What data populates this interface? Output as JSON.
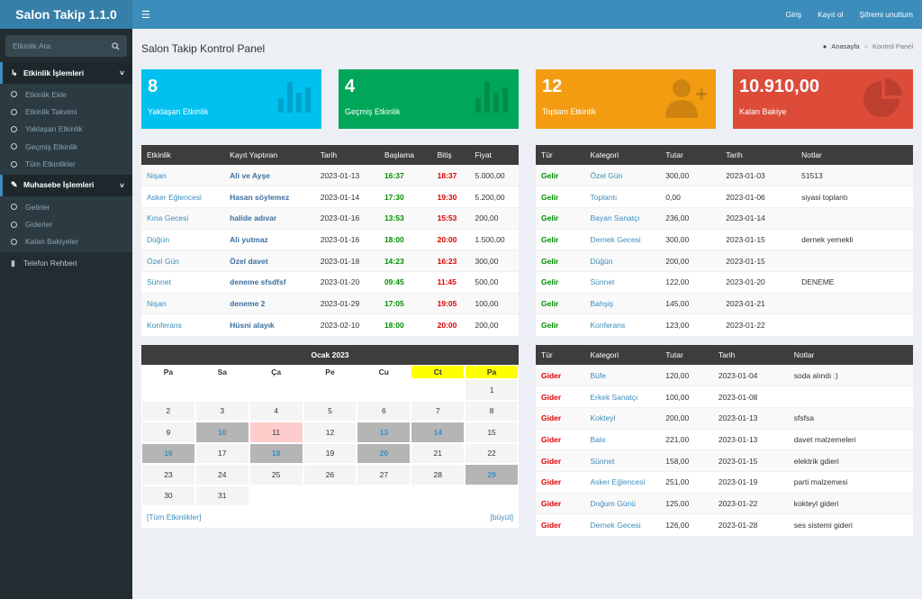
{
  "app": {
    "title": "Salon Takip 1.1.0"
  },
  "sidebar": {
    "search_placeholder": "Etkinlik Ara",
    "groups": [
      {
        "label": "Etkinlik İşlemleri",
        "items": [
          "Etkinlik Ekle",
          "Etkinlik Takvimi",
          "Yaklaşan Etkinlik",
          "Geçmiş Etkinlik",
          "Tüm Etkinlikler"
        ]
      },
      {
        "label": "Muhasebe İşlemleri",
        "items": [
          "Gelirler",
          "Giderler",
          "Kalan Bakiyeler"
        ]
      }
    ],
    "phone": "Telefon Rehberi"
  },
  "topbar": {
    "links": [
      "Giriş",
      "Kayıt ol",
      "Şifremi unuttum"
    ]
  },
  "page": {
    "title": "Salon Takip Kontrol Panel",
    "breadcrumb_home": "Anasayfa",
    "breadcrumb_current": "Kontrol Panel"
  },
  "stats": [
    {
      "value": "8",
      "label": "Yaklaşan Etkinlik",
      "color": "#00c0ef",
      "icon": "bar-chart-icon"
    },
    {
      "value": "4",
      "label": "Geçmiş Etkinlik",
      "color": "#00a65a",
      "icon": "bar-chart-icon"
    },
    {
      "value": "12",
      "label": "Toplam Etkinlik",
      "color": "#f39c12",
      "icon": "user-plus-icon"
    },
    {
      "value": "10.910,00",
      "label": "Kalan Bakiye",
      "color": "#dd4b39",
      "icon": "pie-chart-icon"
    }
  ],
  "events": {
    "headers": [
      "Etkinlik",
      "Kayıt Yaptıran",
      "Tarih",
      "Başlama",
      "Bitiş",
      "Fiyat"
    ],
    "rows": [
      [
        "Nişan",
        "Ali ve Ayşe",
        "2023-01-13",
        "16:37",
        "18:37",
        "5.000,00"
      ],
      [
        "Asker Eğlencesi",
        "Hasan söylemez",
        "2023-01-14",
        "17:30",
        "19:30",
        "5.200,00"
      ],
      [
        "Kına Gecesi",
        "halide adıvar",
        "2023-01-16",
        "13:53",
        "15:53",
        "200,00"
      ],
      [
        "Düğün",
        "Ali yutmaz",
        "2023-01-16",
        "18:00",
        "20:00",
        "1.500,00"
      ],
      [
        "Özel Gün",
        "Özel davet",
        "2023-01-18",
        "14:23",
        "16:23",
        "300,00"
      ],
      [
        "Sünnet",
        "deneme sfsdfsf",
        "2023-01-20",
        "09:45",
        "11:45",
        "500,00"
      ],
      [
        "Nişan",
        "deneme 2",
        "2023-01-29",
        "17:05",
        "19:05",
        "100,00"
      ],
      [
        "Konferans",
        "Hüsni alayık",
        "2023-02-10",
        "18:00",
        "20:00",
        "200,00"
      ]
    ]
  },
  "income": {
    "headers": [
      "Tür",
      "Kategori",
      "Tutar",
      "Tarih",
      "Notlar"
    ],
    "rows": [
      [
        "Gelir",
        "Özel Gün",
        "300,00",
        "2023-01-03",
        "51513"
      ],
      [
        "Gelir",
        "Toplantı",
        "0,00",
        "2023-01-06",
        "siyasi toplantı"
      ],
      [
        "Gelir",
        "Bayan Sanatçı",
        "236,00",
        "2023-01-14",
        ""
      ],
      [
        "Gelir",
        "Dernek Gecesi",
        "300,00",
        "2023-01-15",
        "dernek yemekli"
      ],
      [
        "Gelir",
        "Düğün",
        "200,00",
        "2023-01-15",
        ""
      ],
      [
        "Gelir",
        "Sünnet",
        "122,00",
        "2023-01-20",
        "DENEME"
      ],
      [
        "Gelir",
        "Bahşiş",
        "145,00",
        "2023-01-21",
        ""
      ],
      [
        "Gelir",
        "Konferans",
        "123,00",
        "2023-01-22",
        ""
      ]
    ]
  },
  "expenses": {
    "headers": [
      "Tür",
      "Kategori",
      "Tutar",
      "Tarih",
      "Notlar"
    ],
    "rows": [
      [
        "Gider",
        "Büfe",
        "120,00",
        "2023-01-04",
        "soda alındı :)"
      ],
      [
        "Gider",
        "Erkek Sanatçı",
        "100,00",
        "2023-01-08",
        ""
      ],
      [
        "Gider",
        "Kokteyl",
        "200,00",
        "2023-01-13",
        "sfsfsa"
      ],
      [
        "Gider",
        "Balo",
        "221,00",
        "2023-01-13",
        "davet malzemeleri"
      ],
      [
        "Gider",
        "Sünnet",
        "158,00",
        "2023-01-15",
        "elektrik gdieri"
      ],
      [
        "Gider",
        "Asker Eğlencesi",
        "251,00",
        "2023-01-19",
        "parti malzemesi"
      ],
      [
        "Gider",
        "Doğum Günü",
        "125,00",
        "2023-01-22",
        "kokteyl gideri"
      ],
      [
        "Gider",
        "Dernek Gecesi",
        "126,00",
        "2023-01-28",
        "ses sistemi gideri"
      ]
    ]
  },
  "calendar": {
    "title": "Ocak 2023",
    "day_names": [
      "Pa",
      "Sa",
      "Ça",
      "Pe",
      "Cu",
      "Ct",
      "Pa"
    ],
    "first_weekday_offset": 6,
    "days": 31,
    "event_days": [
      10,
      13,
      14,
      16,
      18,
      20,
      29
    ],
    "today": 11,
    "weekend_header_cols": [
      5,
      6
    ],
    "footer_left": "[Tüm Etkinlikler]",
    "footer_right": "[büyüt]"
  }
}
